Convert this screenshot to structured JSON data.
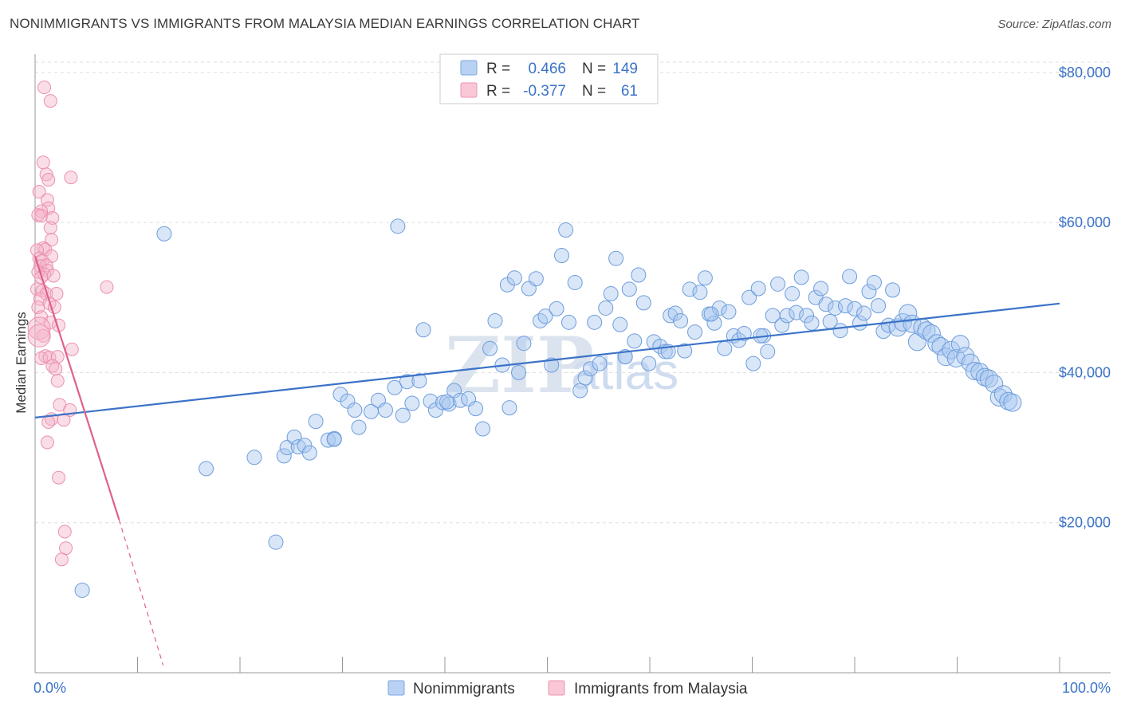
{
  "title": "NONIMMIGRANTS VS IMMIGRANTS FROM MALAYSIA MEDIAN EARNINGS CORRELATION CHART",
  "source": "Source: ZipAtlas.com",
  "watermark": {
    "zip": "ZIP",
    "atlas": "atlas"
  },
  "colors": {
    "blue": "#3b73c8",
    "blue_fill": "#a9c8f0",
    "pink": "#e0608a",
    "pink_fill": "#f5b6c9"
  },
  "legend": {
    "r_label": "R =",
    "n_label": "N =",
    "series1": {
      "r": "0.466",
      "n": "149"
    },
    "series2": {
      "r": "-0.377",
      "n": "61"
    }
  },
  "bottom_legend": {
    "series1": "Nonimmigrants",
    "series2": "Immigrants from Malaysia"
  },
  "chart_data": {
    "type": "scatter",
    "title": "NONIMMIGRANTS VS IMMIGRANTS FROM MALAYSIA MEDIAN EARNINGS CORRELATION CHART",
    "xlabel": "",
    "ylabel": "Median Earnings",
    "xlim": [
      0,
      100
    ],
    "ylim": [
      0,
      82000
    ],
    "x_tick_labels": {
      "left": "0.0%",
      "right": "100.0%"
    },
    "y_ticks": [
      {
        "value": 20000,
        "label": "$20,000"
      },
      {
        "value": 40000,
        "label": "$40,000"
      },
      {
        "value": 60000,
        "label": "$60,000"
      },
      {
        "value": 80000,
        "label": "$80,000"
      }
    ],
    "series": [
      {
        "name": "Nonimmigrants",
        "r": 0.466,
        "n": 149,
        "trend": {
          "x0": 0,
          "y0": 34000,
          "x1": 100,
          "y1": 49200
        },
        "points": [
          [
            4.6,
            11000
          ],
          [
            12.6,
            58500
          ],
          [
            16.7,
            27200
          ],
          [
            21.4,
            28700
          ],
          [
            23.5,
            17400
          ],
          [
            24.3,
            28900
          ],
          [
            24.6,
            30000
          ],
          [
            25.3,
            31400
          ],
          [
            25.7,
            30100
          ],
          [
            26.3,
            30300
          ],
          [
            26.8,
            29300
          ],
          [
            27.4,
            33500
          ],
          [
            28.6,
            31000
          ],
          [
            29.2,
            31200
          ],
          [
            29.8,
            37100
          ],
          [
            30.5,
            36200
          ],
          [
            31.2,
            35000
          ],
          [
            31.6,
            32700
          ],
          [
            32.8,
            34800
          ],
          [
            33.5,
            36300
          ],
          [
            34.2,
            35000
          ],
          [
            35.1,
            38000
          ],
          [
            35.4,
            59500
          ],
          [
            35.9,
            34300
          ],
          [
            36.3,
            38800
          ],
          [
            36.8,
            35900
          ],
          [
            37.5,
            38900
          ],
          [
            37.9,
            45700
          ],
          [
            38.6,
            36200
          ],
          [
            39.1,
            35000
          ],
          [
            39.8,
            36000
          ],
          [
            40.4,
            35800
          ],
          [
            40.9,
            37600
          ],
          [
            41.5,
            36300
          ],
          [
            42.3,
            36500
          ],
          [
            43.0,
            35200
          ],
          [
            43.7,
            32500
          ],
          [
            44.4,
            43200
          ],
          [
            44.9,
            46900
          ],
          [
            45.6,
            41000
          ],
          [
            46.1,
            51700
          ],
          [
            46.8,
            52600
          ],
          [
            47.2,
            40000
          ],
          [
            47.7,
            43900
          ],
          [
            48.2,
            51200
          ],
          [
            48.9,
            52500
          ],
          [
            49.3,
            46900
          ],
          [
            49.8,
            47500
          ],
          [
            50.4,
            41000
          ],
          [
            50.9,
            48500
          ],
          [
            51.4,
            55600
          ],
          [
            51.8,
            59000
          ],
          [
            52.1,
            46700
          ],
          [
            52.7,
            52000
          ],
          [
            53.2,
            37600
          ],
          [
            53.7,
            39300
          ],
          [
            54.2,
            40500
          ],
          [
            54.6,
            46700
          ],
          [
            55.1,
            41200
          ],
          [
            55.7,
            48600
          ],
          [
            56.2,
            50500
          ],
          [
            56.7,
            55200
          ],
          [
            57.1,
            46400
          ],
          [
            57.6,
            42100
          ],
          [
            58.0,
            51100
          ],
          [
            58.5,
            44200
          ],
          [
            58.9,
            53000
          ],
          [
            59.4,
            49300
          ],
          [
            59.9,
            41200
          ],
          [
            60.4,
            44100
          ],
          [
            61.0,
            43500
          ],
          [
            61.5,
            42800
          ],
          [
            62.0,
            47600
          ],
          [
            62.5,
            47900
          ],
          [
            63.0,
            46900
          ],
          [
            63.4,
            42900
          ],
          [
            63.9,
            51100
          ],
          [
            64.4,
            45400
          ],
          [
            64.9,
            50700
          ],
          [
            65.4,
            52600
          ],
          [
            65.8,
            47800
          ],
          [
            66.3,
            46600
          ],
          [
            66.8,
            48600
          ],
          [
            67.3,
            43200
          ],
          [
            67.7,
            48100
          ],
          [
            68.2,
            44900
          ],
          [
            68.7,
            44300
          ],
          [
            69.2,
            45200
          ],
          [
            69.7,
            50000
          ],
          [
            70.1,
            41200
          ],
          [
            70.6,
            51200
          ],
          [
            71.1,
            44900
          ],
          [
            71.5,
            42800
          ],
          [
            72.0,
            47600
          ],
          [
            72.5,
            51800
          ],
          [
            72.9,
            46300
          ],
          [
            73.4,
            47600
          ],
          [
            73.9,
            50500
          ],
          [
            74.3,
            48000
          ],
          [
            74.8,
            52700
          ],
          [
            75.3,
            47600
          ],
          [
            75.8,
            46600
          ],
          [
            76.2,
            50000
          ],
          [
            76.7,
            51200
          ],
          [
            77.2,
            49100
          ],
          [
            77.6,
            46800
          ],
          [
            78.1,
            48600
          ],
          [
            78.6,
            45600
          ],
          [
            79.1,
            48900
          ],
          [
            79.5,
            52800
          ],
          [
            80.0,
            48500
          ],
          [
            80.5,
            46600
          ],
          [
            80.9,
            47900
          ],
          [
            81.4,
            50800
          ],
          [
            81.9,
            52000
          ],
          [
            82.3,
            48900
          ],
          [
            82.8,
            45500
          ],
          [
            83.3,
            46300
          ],
          [
            83.7,
            51000
          ],
          [
            84.2,
            46000
          ],
          [
            84.7,
            46700
          ],
          [
            85.2,
            47900
          ],
          [
            85.6,
            46500
          ],
          [
            86.1,
            44100
          ],
          [
            86.6,
            46000
          ],
          [
            87.0,
            45600
          ],
          [
            87.5,
            45200
          ],
          [
            88.0,
            43900
          ],
          [
            88.4,
            43500
          ],
          [
            88.9,
            42100
          ],
          [
            89.4,
            43000
          ],
          [
            89.9,
            41900
          ],
          [
            90.3,
            43800
          ],
          [
            90.8,
            42200
          ],
          [
            91.3,
            41300
          ],
          [
            91.7,
            40200
          ],
          [
            92.2,
            40100
          ],
          [
            92.7,
            39400
          ],
          [
            93.1,
            39200
          ],
          [
            93.6,
            38500
          ],
          [
            94.1,
            36700
          ],
          [
            94.5,
            37100
          ],
          [
            95.0,
            36200
          ],
          [
            95.4,
            36000
          ],
          [
            29.2,
            31100
          ],
          [
            40.2,
            36100
          ],
          [
            46.3,
            35300
          ],
          [
            57.6,
            42100
          ],
          [
            61.8,
            42800
          ],
          [
            66.0,
            47800
          ],
          [
            70.8,
            44900
          ]
        ]
      },
      {
        "name": "Immigrants from Malaysia",
        "r": -0.377,
        "n": 61,
        "trend": {
          "x0": 0,
          "y0": 55500,
          "x1": 8.2,
          "y1": 20400,
          "dash_x1": 12.5,
          "dash_y1": 1000
        },
        "points": [
          [
            0.9,
            78000
          ],
          [
            1.5,
            76200
          ],
          [
            0.8,
            68000
          ],
          [
            1.1,
            66400
          ],
          [
            1.3,
            65700
          ],
          [
            3.5,
            66000
          ],
          [
            0.4,
            64100
          ],
          [
            1.2,
            63000
          ],
          [
            1.3,
            61900
          ],
          [
            0.6,
            61500
          ],
          [
            0.3,
            61000
          ],
          [
            0.6,
            60900
          ],
          [
            1.7,
            60600
          ],
          [
            1.5,
            59300
          ],
          [
            1.6,
            57700
          ],
          [
            0.8,
            56600
          ],
          [
            1.0,
            56400
          ],
          [
            0.2,
            56300
          ],
          [
            1.6,
            55500
          ],
          [
            0.4,
            55200
          ],
          [
            0.7,
            54900
          ],
          [
            1.1,
            54300
          ],
          [
            0.5,
            54200
          ],
          [
            1.2,
            53600
          ],
          [
            0.3,
            53400
          ],
          [
            0.9,
            53100
          ],
          [
            1.8,
            52900
          ],
          [
            0.6,
            52700
          ],
          [
            0.2,
            51100
          ],
          [
            0.7,
            50900
          ],
          [
            1.1,
            50500
          ],
          [
            2.1,
            50500
          ],
          [
            0.5,
            49800
          ],
          [
            1.4,
            49200
          ],
          [
            0.3,
            48700
          ],
          [
            1.9,
            48700
          ],
          [
            7.0,
            51400
          ],
          [
            0.6,
            47400
          ],
          [
            1.5,
            46700
          ],
          [
            2.3,
            46300
          ],
          [
            0.4,
            45900
          ],
          [
            0.8,
            44900
          ],
          [
            3.6,
            43100
          ],
          [
            1.0,
            42200
          ],
          [
            0.6,
            41900
          ],
          [
            1.4,
            42000
          ],
          [
            2.2,
            42100
          ],
          [
            1.7,
            40900
          ],
          [
            2.0,
            40500
          ],
          [
            2.2,
            38900
          ],
          [
            2.4,
            35700
          ],
          [
            3.4,
            35000
          ],
          [
            1.6,
            33800
          ],
          [
            2.8,
            33700
          ],
          [
            1.3,
            33400
          ],
          [
            1.2,
            30700
          ],
          [
            2.3,
            26000
          ],
          [
            2.9,
            18800
          ],
          [
            3.0,
            16600
          ],
          [
            2.6,
            15100
          ],
          [
            0.4,
            44900
          ]
        ]
      }
    ]
  }
}
